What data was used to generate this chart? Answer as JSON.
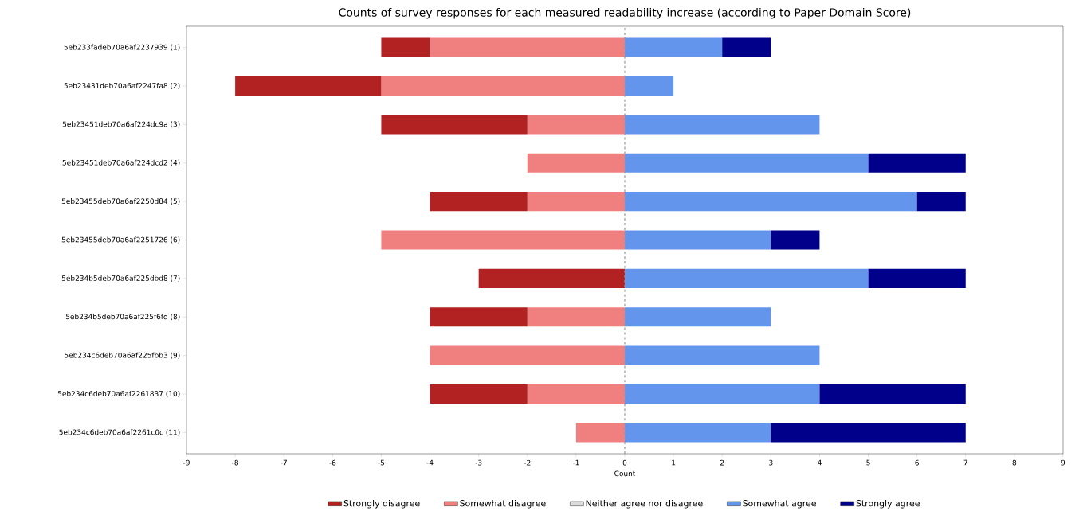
{
  "chart_data": {
    "type": "bar",
    "orientation": "horizontal",
    "stacked": true,
    "title": "Counts of survey responses for each measured readability increase (according to Paper Domain Score)",
    "xlabel": "Count",
    "categories": [
      "5eb233fadeb70a6af2237939  (1)",
      "5eb23431deb70a6af2247fa8  (2)",
      "5eb23451deb70a6af224dc9a  (3)",
      "5eb23451deb70a6af224dcd2  (4)",
      "5eb23455deb70a6af2250d84  (5)",
      "5eb23455deb70a6af2251726  (6)",
      "5eb234b5deb70a6af225dbd8  (7)",
      "5eb234b5deb70a6af225f6fd  (8)",
      "5eb234c6deb70a6af225fbb3  (9)",
      "5eb234c6deb70a6af2261837  (10)",
      "5eb234c6deb70a6af2261c0c  (11)"
    ],
    "series": [
      {
        "name": "Somewhat disagree",
        "color": "#f08080",
        "values": [
          -4,
          -5,
          -2,
          -2,
          -2,
          -5,
          0,
          -2,
          -4,
          -2,
          -1
        ]
      },
      {
        "name": "Strongly disagree",
        "color": "#b22222",
        "values": [
          -1,
          -3,
          -3,
          0,
          -2,
          0,
          -3,
          -2,
          0,
          -2,
          0
        ]
      },
      {
        "name": "Neither agree nor disagree",
        "color": "#dcdcdc",
        "values": [
          0,
          0,
          0,
          0,
          0,
          0,
          0,
          0,
          0,
          0,
          0
        ]
      },
      {
        "name": "Somewhat agree",
        "color": "#6495ed",
        "values": [
          2,
          1,
          4,
          5,
          6,
          3,
          5,
          3,
          4,
          4,
          3
        ]
      },
      {
        "name": "Strongly agree",
        "color": "#00008b",
        "values": [
          1,
          0,
          0,
          2,
          1,
          1,
          2,
          0,
          0,
          3,
          4
        ]
      }
    ],
    "xlim": [
      -9,
      9
    ],
    "xticks": [
      -9,
      -8,
      -7,
      -6,
      -5,
      -4,
      -3,
      -2,
      -1,
      0,
      1,
      2,
      3,
      4,
      5,
      6,
      7,
      8,
      9
    ],
    "ref_lines": [
      {
        "axis": "x",
        "value": 0,
        "color": "#999999",
        "line_style": "dashed"
      }
    ],
    "legend": "bottom"
  }
}
